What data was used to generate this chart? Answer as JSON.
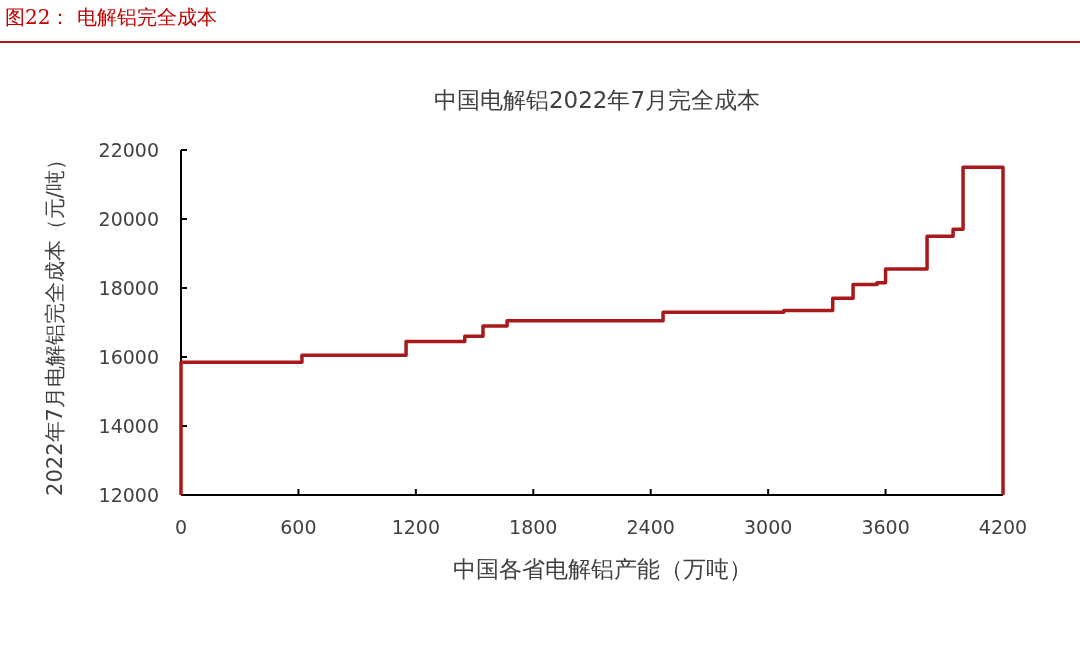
{
  "chart_data": {
    "type": "step",
    "title": "中国电解铝2022年7月完全成本",
    "xlabel": "中国各省电解铝产能（万吨）",
    "ylabel": "2022年7月电解铝完全成本（元/吨）",
    "annotations": [
      "图22：  电解铝完全成本"
    ],
    "x": [
      0,
      0,
      618,
      1150,
      1450,
      1543,
      1666,
      2463,
      3080,
      3330,
      3434,
      3556,
      3600,
      3812,
      3945,
      3996,
      4200,
      4200
    ],
    "values": [
      12000,
      15850,
      16050,
      16450,
      16600,
      16900,
      17050,
      17300,
      17350,
      17700,
      18100,
      18150,
      18550,
      19500,
      19700,
      21500,
      21500,
      12000
    ],
    "color": "#a8191c",
    "xlim": [
      0,
      4200
    ],
    "ylim": [
      12000,
      22000
    ],
    "xticks": [
      0,
      600,
      1200,
      1800,
      2400,
      3000,
      3600,
      4200
    ],
    "yticks": [
      12000,
      14000,
      16000,
      18000,
      20000,
      22000
    ],
    "grid": false
  }
}
